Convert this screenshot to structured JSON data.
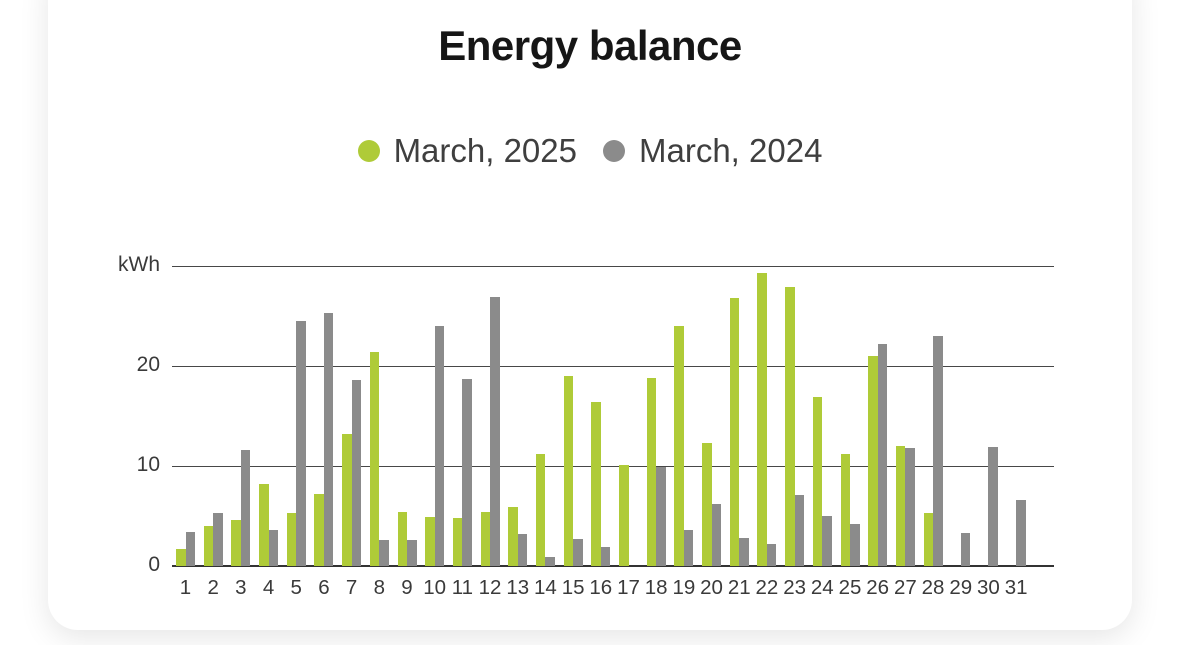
{
  "card": {
    "background": "#ffffff"
  },
  "chart_data": {
    "type": "bar",
    "title": "Energy balance",
    "xlabel": "",
    "ylabel": "kWh",
    "ylim": [
      0,
      30
    ],
    "yticks": [
      0,
      10,
      20
    ],
    "gridlines": [
      0,
      10,
      20,
      30
    ],
    "grid": "horizontal",
    "legend_position": "top",
    "categories": [
      "1",
      "2",
      "3",
      "4",
      "5",
      "6",
      "7",
      "8",
      "9",
      "10",
      "11",
      "12",
      "13",
      "14",
      "15",
      "16",
      "17",
      "18",
      "19",
      "20",
      "21",
      "22",
      "23",
      "24",
      "25",
      "26",
      "27",
      "28",
      "29",
      "30",
      "31"
    ],
    "series": [
      {
        "name": "March, 2025",
        "color": "#afcb38",
        "values": [
          1.7,
          4.0,
          4.6,
          8.2,
          5.3,
          7.2,
          13.2,
          21.4,
          5.4,
          4.9,
          4.8,
          5.4,
          5.9,
          11.2,
          19.0,
          16.4,
          10.1,
          18.8,
          24.0,
          12.3,
          26.8,
          29.3,
          27.9,
          16.9,
          11.2,
          21.0,
          12.0,
          5.3,
          0,
          0,
          0
        ]
      },
      {
        "name": "March, 2024",
        "color": "#8b8b8b",
        "values": [
          3.4,
          5.3,
          11.6,
          3.6,
          24.5,
          25.3,
          18.6,
          2.6,
          2.6,
          24.0,
          18.7,
          26.9,
          3.2,
          0.9,
          2.7,
          1.9,
          0,
          9.9,
          3.6,
          6.2,
          2.8,
          2.2,
          7.1,
          5.0,
          4.2,
          22.2,
          11.8,
          23.0,
          3.3,
          11.9,
          6.6
        ]
      }
    ]
  },
  "colors": {
    "title_text": "#161616",
    "legend_text": "#3f3f3f",
    "axis_text": "#3a3a3a",
    "gridline": "#474747",
    "green": "#afcb38",
    "gray": "#8b8b8b"
  }
}
